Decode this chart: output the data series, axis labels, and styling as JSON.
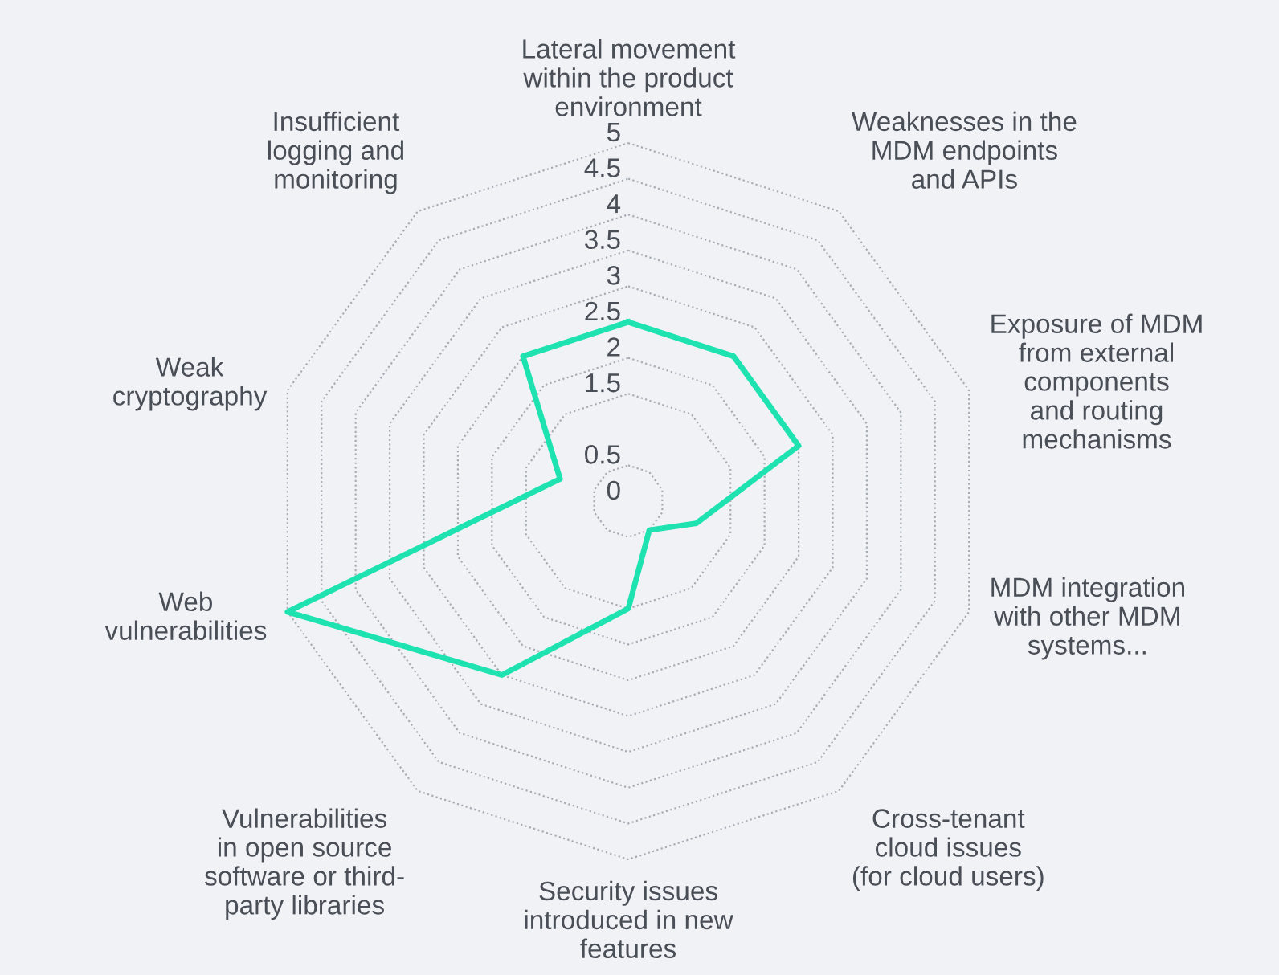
{
  "chart_data": {
    "type": "radar",
    "categories": [
      "Lateral movement\nwithin the product\nenvironment",
      "Weaknesses in the\nMDM endpoints\nand APIs",
      "Exposure of MDM\nfrom external\ncomponents\nand routing\nmechanisms",
      "MDM integration\nwith other MDM\nsystems...",
      "Cross-tenant\ncloud issues\n(for cloud users)",
      "Security issues\nintroduced in new\nfeatures",
      "Vulnerabilities\nin open source\nsoftware or third-\nparty libraries",
      "Web\nvulnerabilities",
      "Weak\ncryptography",
      "Insufficient\nlogging and\nmonitoring"
    ],
    "series": [
      {
        "color": "#1ee3b0",
        "values": [
          2.5,
          2.5,
          2.5,
          1,
          0.5,
          1.5,
          3,
          5,
          1,
          2.5
        ]
      }
    ],
    "ylim": [
      0,
      5
    ],
    "yticks": [
      0,
      0.5,
      1.5,
      2,
      2.5,
      3,
      3.5,
      4,
      4.5,
      5
    ],
    "grid": true
  }
}
